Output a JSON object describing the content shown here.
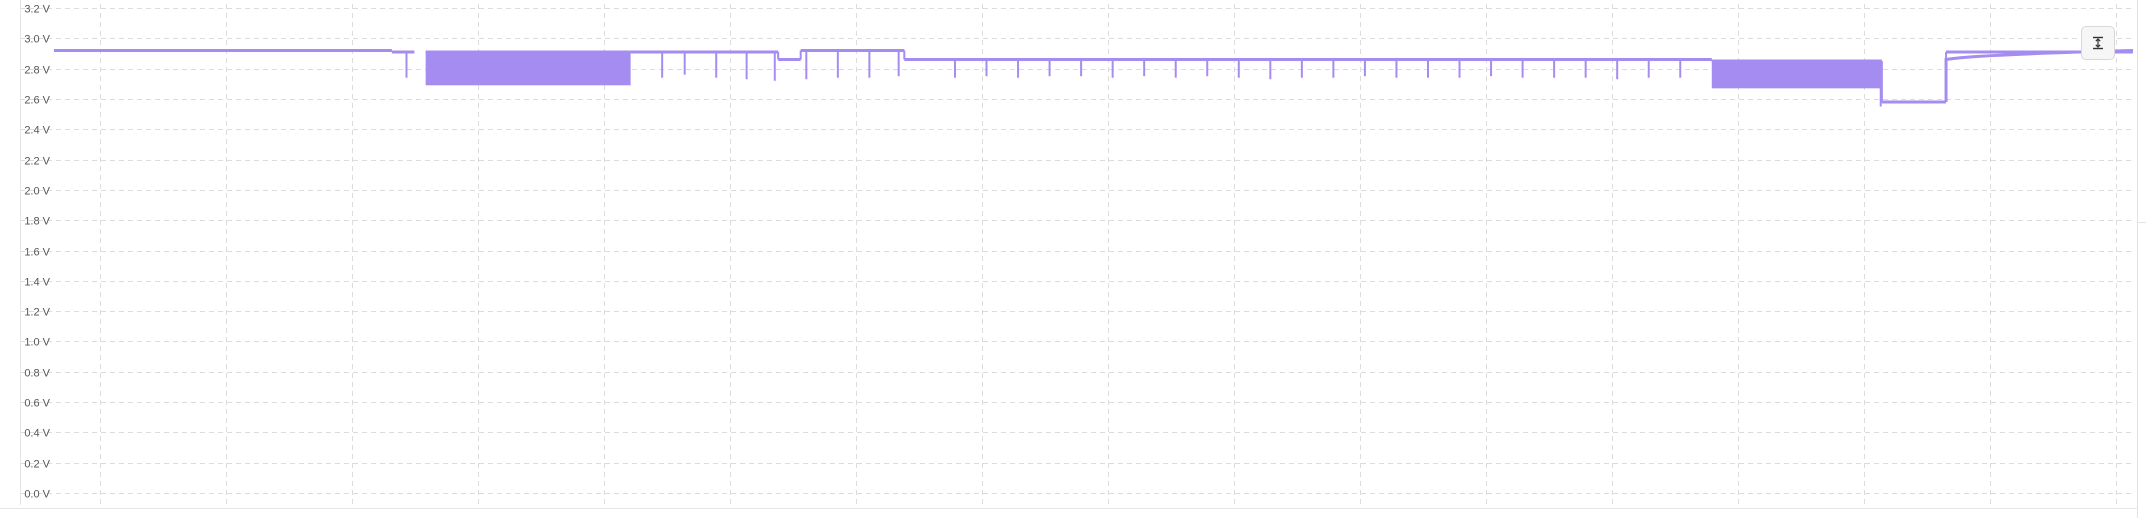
{
  "chart_data": {
    "type": "line",
    "title": "",
    "xlabel": "",
    "ylabel": "",
    "yunit": "V",
    "ylim": [
      0.0,
      3.2
    ],
    "yticks": [
      "0.0 V",
      "0.2 V",
      "0.4 V",
      "0.6 V",
      "0.8 V",
      "1.0 V",
      "1.2 V",
      "1.4 V",
      "1.6 V",
      "1.8 V",
      "2.0 V",
      "2.2 V",
      "2.4 V",
      "2.6 V",
      "2.8 V",
      "3.0 V",
      "3.2 V"
    ],
    "grid": true,
    "legend": "none",
    "color": "#a58cf0",
    "series": [
      {
        "segments": [
          {
            "x": [
              0,
              300
            ],
            "y": 2.92
          },
          {
            "x": [
              300,
              320
            ],
            "y": 2.91
          },
          {
            "x": [
              330,
              512
            ],
            "y": 2.91,
            "band_low": 2.69
          },
          {
            "x": [
              512,
              643
            ],
            "y": 2.91
          },
          {
            "x": [
              643,
              663
            ],
            "y": 2.86
          },
          {
            "x": [
              663,
              755
            ],
            "y": 2.92
          },
          {
            "x": [
              755,
              1472
            ],
            "y": 2.86
          },
          {
            "x": [
              1472,
              1623
            ],
            "y": 2.85,
            "band_low": 2.67
          },
          {
            "x": [
              1623,
              1680
            ],
            "y": 2.58
          },
          {
            "x": [
              1680,
              1846
            ],
            "y": 2.91
          }
        ],
        "spikes": [
          {
            "x": 313,
            "y": 2.74
          },
          {
            "x": 540,
            "y": 2.74
          },
          {
            "x": 560,
            "y": 2.76
          },
          {
            "x": 588,
            "y": 2.74
          },
          {
            "x": 615,
            "y": 2.73
          },
          {
            "x": 640,
            "y": 2.72
          },
          {
            "x": 668,
            "y": 2.73
          },
          {
            "x": 696,
            "y": 2.74
          },
          {
            "x": 724,
            "y": 2.74
          },
          {
            "x": 750,
            "y": 2.75
          },
          {
            "x": 800,
            "y": 2.74
          },
          {
            "x": 828,
            "y": 2.75
          },
          {
            "x": 856,
            "y": 2.74
          },
          {
            "x": 884,
            "y": 2.75
          },
          {
            "x": 912,
            "y": 2.75
          },
          {
            "x": 940,
            "y": 2.74
          },
          {
            "x": 968,
            "y": 2.75
          },
          {
            "x": 996,
            "y": 2.74
          },
          {
            "x": 1024,
            "y": 2.75
          },
          {
            "x": 1052,
            "y": 2.74
          },
          {
            "x": 1080,
            "y": 2.73
          },
          {
            "x": 1108,
            "y": 2.74
          },
          {
            "x": 1136,
            "y": 2.74
          },
          {
            "x": 1164,
            "y": 2.75
          },
          {
            "x": 1192,
            "y": 2.74
          },
          {
            "x": 1220,
            "y": 2.74
          },
          {
            "x": 1248,
            "y": 2.74
          },
          {
            "x": 1276,
            "y": 2.75
          },
          {
            "x": 1304,
            "y": 2.74
          },
          {
            "x": 1332,
            "y": 2.74
          },
          {
            "x": 1360,
            "y": 2.74
          },
          {
            "x": 1388,
            "y": 2.73
          },
          {
            "x": 1416,
            "y": 2.74
          },
          {
            "x": 1444,
            "y": 2.74
          },
          {
            "x": 1622,
            "y": 2.55
          }
        ]
      }
    ]
  },
  "toolbar": {
    "zoom_button": {
      "icon": "fit-height-icon"
    }
  }
}
